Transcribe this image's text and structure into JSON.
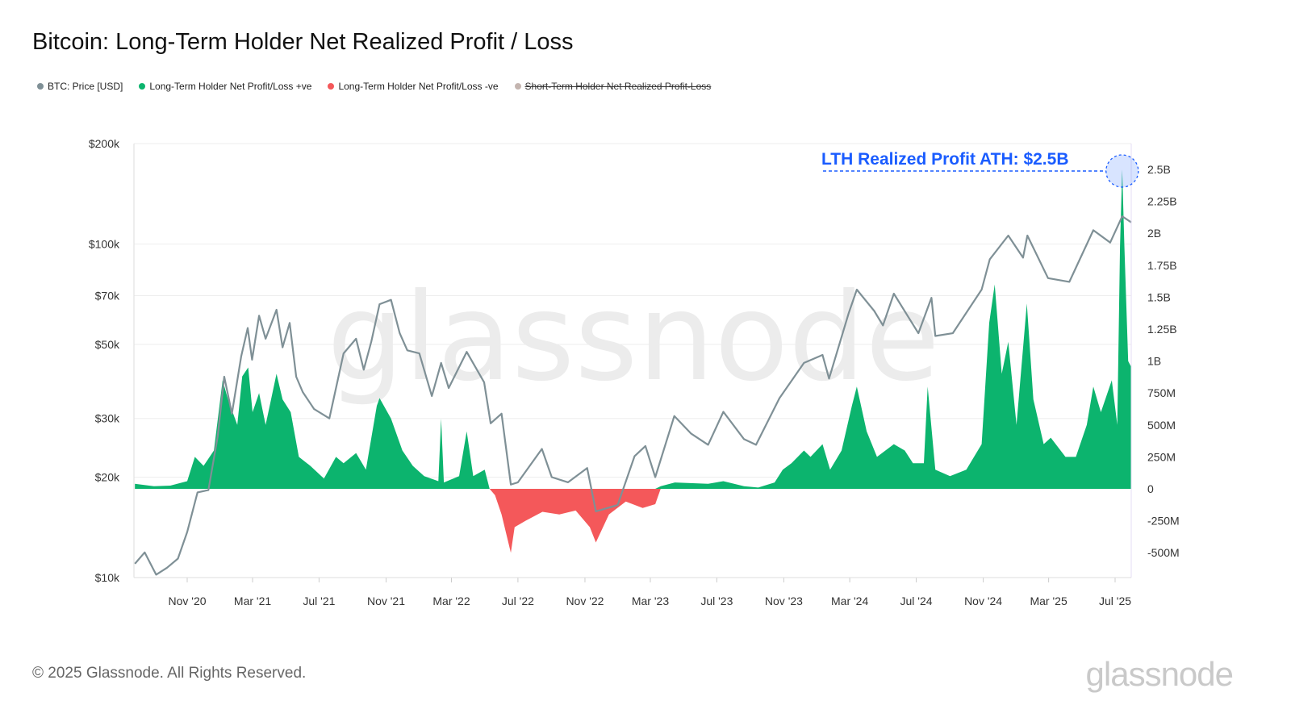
{
  "title": "Bitcoin: Long-Term Holder Net Realized Profit / Loss",
  "legend": [
    {
      "label": "BTC: Price [USD]",
      "color": "#7f9096",
      "enabled": true
    },
    {
      "label": "Long-Term Holder Net Profit/Loss +ve",
      "color": "#0cb46e",
      "enabled": true
    },
    {
      "label": "Long-Term Holder Net Profit/Loss -ve",
      "color": "#f4585a",
      "enabled": true
    },
    {
      "label": "Short-Term Holder Net Realized Profit-Loss",
      "color": "#c4b5b0",
      "enabled": false
    }
  ],
  "footer": "© 2025 Glassnode. All Rights Reserved.",
  "logo_text": "glassnode",
  "watermark": "glassnode",
  "chart_data": {
    "type": "line+area",
    "title": "Bitcoin: Long-Term Holder Net Realized Profit / Loss",
    "x_ticks": [
      "Nov '20",
      "Mar '21",
      "Jul '21",
      "Nov '21",
      "Mar '22",
      "Jul '22",
      "Nov '22",
      "Mar '23",
      "Jul '23",
      "Nov '23",
      "Mar '24",
      "Jul '24",
      "Nov '24",
      "Mar '25",
      "Jul '25"
    ],
    "x_tick_dates": [
      "2020-11-01",
      "2021-03-01",
      "2021-07-01",
      "2021-11-01",
      "2022-03-01",
      "2022-07-01",
      "2022-11-01",
      "2023-03-01",
      "2023-07-01",
      "2023-11-01",
      "2024-03-01",
      "2024-07-01",
      "2024-11-01",
      "2025-03-01",
      "2025-07-01"
    ],
    "x_range": [
      "2020-07-28",
      "2025-08-02"
    ],
    "left_axis": {
      "scale": "log",
      "range": [
        10000,
        200000
      ],
      "ticks": [
        10000,
        20000,
        30000,
        50000,
        70000,
        100000,
        200000
      ],
      "tick_labels": [
        "$10k",
        "$20k",
        "$30k",
        "$50k",
        "$70k",
        "$100k",
        "$200k"
      ]
    },
    "right_axis": {
      "scale": "linear",
      "range": [
        -700000000,
        2700000000
      ],
      "ticks": [
        -500000000,
        -250000000,
        0,
        250000000,
        500000000,
        750000000,
        1000000000,
        1250000000,
        1500000000,
        1750000000,
        2000000000,
        2250000000,
        2500000000
      ],
      "tick_labels": [
        "-500M",
        "-250M",
        "0",
        "250M",
        "500M",
        "750M",
        "1B",
        "1.25B",
        "1.5B",
        "1.75B",
        "2B",
        "2.25B",
        "2.5B"
      ]
    },
    "grid": true,
    "annotation": {
      "text": "LTH Realized Profit ATH: $2.5B",
      "date": "2025-07-14",
      "value": 2500000000,
      "color": "#1a5cff"
    },
    "series": [
      {
        "name": "BTC: Price [USD]",
        "axis": "left",
        "color": "#7f9096",
        "points": [
          [
            "2020-07-28",
            11000
          ],
          [
            "2020-08-15",
            11900
          ],
          [
            "2020-09-05",
            10200
          ],
          [
            "2020-09-25",
            10700
          ],
          [
            "2020-10-15",
            11400
          ],
          [
            "2020-11-01",
            13700
          ],
          [
            "2020-11-20",
            18000
          ],
          [
            "2020-12-10",
            18300
          ],
          [
            "2020-12-27",
            26500
          ],
          [
            "2021-01-08",
            40000
          ],
          [
            "2021-01-22",
            31000
          ],
          [
            "2021-02-08",
            46000
          ],
          [
            "2021-02-20",
            56000
          ],
          [
            "2021-02-28",
            45000
          ],
          [
            "2021-03-13",
            61000
          ],
          [
            "2021-03-25",
            52000
          ],
          [
            "2021-04-14",
            63500
          ],
          [
            "2021-04-25",
            49000
          ],
          [
            "2021-05-08",
            58000
          ],
          [
            "2021-05-20",
            40000
          ],
          [
            "2021-06-01",
            36000
          ],
          [
            "2021-06-22",
            32000
          ],
          [
            "2021-07-20",
            30000
          ],
          [
            "2021-08-15",
            47000
          ],
          [
            "2021-09-07",
            52000
          ],
          [
            "2021-09-21",
            42000
          ],
          [
            "2021-10-05",
            51000
          ],
          [
            "2021-10-20",
            66000
          ],
          [
            "2021-11-10",
            68000
          ],
          [
            "2021-11-26",
            54000
          ],
          [
            "2021-12-10",
            48000
          ],
          [
            "2022-01-01",
            47000
          ],
          [
            "2022-01-24",
            35000
          ],
          [
            "2022-02-10",
            44000
          ],
          [
            "2022-02-24",
            37000
          ],
          [
            "2022-03-29",
            47500
          ],
          [
            "2022-04-30",
            38500
          ],
          [
            "2022-05-12",
            29000
          ],
          [
            "2022-06-01",
            31000
          ],
          [
            "2022-06-18",
            19000
          ],
          [
            "2022-07-01",
            19300
          ],
          [
            "2022-08-14",
            24300
          ],
          [
            "2022-09-01",
            20000
          ],
          [
            "2022-10-01",
            19300
          ],
          [
            "2022-11-05",
            21300
          ],
          [
            "2022-11-21",
            15800
          ],
          [
            "2022-12-31",
            16500
          ],
          [
            "2023-01-31",
            23100
          ],
          [
            "2023-02-20",
            24800
          ],
          [
            "2023-03-10",
            20000
          ],
          [
            "2023-04-14",
            30500
          ],
          [
            "2023-05-15",
            27000
          ],
          [
            "2023-06-15",
            25000
          ],
          [
            "2023-07-13",
            31400
          ],
          [
            "2023-08-20",
            26000
          ],
          [
            "2023-09-11",
            25000
          ],
          [
            "2023-10-24",
            34500
          ],
          [
            "2023-12-08",
            44000
          ],
          [
            "2024-01-11",
            46500
          ],
          [
            "2024-01-23",
            39500
          ],
          [
            "2024-02-28",
            62000
          ],
          [
            "2024-03-14",
            73000
          ],
          [
            "2024-04-15",
            63000
          ],
          [
            "2024-05-01",
            57000
          ],
          [
            "2024-05-21",
            71000
          ],
          [
            "2024-07-05",
            54000
          ],
          [
            "2024-07-29",
            69000
          ],
          [
            "2024-08-05",
            53000
          ],
          [
            "2024-09-06",
            54000
          ],
          [
            "2024-10-29",
            73000
          ],
          [
            "2024-11-13",
            90000
          ],
          [
            "2024-12-17",
            106000
          ],
          [
            "2025-01-13",
            91000
          ],
          [
            "2025-01-21",
            106000
          ],
          [
            "2025-02-28",
            79000
          ],
          [
            "2025-04-08",
            77000
          ],
          [
            "2025-05-22",
            110000
          ],
          [
            "2025-06-22",
            101000
          ],
          [
            "2025-07-14",
            121000
          ],
          [
            "2025-07-31",
            116000
          ]
        ]
      },
      {
        "name": "Long-Term Holder Net Profit/Loss",
        "axis": "right",
        "positive_color": "#0cb46e",
        "negative_color": "#f4585a",
        "points": [
          [
            "2020-07-28",
            40000000
          ],
          [
            "2020-09-01",
            20000000
          ],
          [
            "2020-10-01",
            25000000
          ],
          [
            "2020-11-01",
            60000000
          ],
          [
            "2020-11-15",
            250000000
          ],
          [
            "2020-12-01",
            180000000
          ],
          [
            "2020-12-20",
            300000000
          ],
          [
            "2021-01-05",
            850000000
          ],
          [
            "2021-01-15",
            700000000
          ],
          [
            "2021-02-01",
            500000000
          ],
          [
            "2021-02-10",
            880000000
          ],
          [
            "2021-02-21",
            950000000
          ],
          [
            "2021-03-01",
            600000000
          ],
          [
            "2021-03-13",
            750000000
          ],
          [
            "2021-03-25",
            500000000
          ],
          [
            "2021-04-14",
            900000000
          ],
          [
            "2021-04-25",
            700000000
          ],
          [
            "2021-05-10",
            600000000
          ],
          [
            "2021-05-25",
            250000000
          ],
          [
            "2021-06-15",
            180000000
          ],
          [
            "2021-07-10",
            80000000
          ],
          [
            "2021-08-01",
            250000000
          ],
          [
            "2021-08-15",
            200000000
          ],
          [
            "2021-09-07",
            280000000
          ],
          [
            "2021-09-25",
            150000000
          ],
          [
            "2021-10-15",
            650000000
          ],
          [
            "2021-10-20",
            710000000
          ],
          [
            "2021-11-10",
            550000000
          ],
          [
            "2021-12-01",
            300000000
          ],
          [
            "2021-12-20",
            180000000
          ],
          [
            "2022-01-10",
            100000000
          ],
          [
            "2022-02-05",
            60000000
          ],
          [
            "2022-02-10",
            550000000
          ],
          [
            "2022-02-15",
            50000000
          ],
          [
            "2022-03-15",
            100000000
          ],
          [
            "2022-03-29",
            450000000
          ],
          [
            "2022-04-10",
            100000000
          ],
          [
            "2022-05-01",
            150000000
          ],
          [
            "2022-05-10",
            0
          ],
          [
            "2022-05-20",
            -50000000
          ],
          [
            "2022-06-01",
            -200000000
          ],
          [
            "2022-06-18",
            -500000000
          ],
          [
            "2022-06-25",
            -300000000
          ],
          [
            "2022-07-15",
            -250000000
          ],
          [
            "2022-08-15",
            -180000000
          ],
          [
            "2022-09-15",
            -200000000
          ],
          [
            "2022-10-15",
            -170000000
          ],
          [
            "2022-11-10",
            -300000000
          ],
          [
            "2022-11-21",
            -420000000
          ],
          [
            "2022-12-15",
            -200000000
          ],
          [
            "2023-01-15",
            -100000000
          ],
          [
            "2023-02-15",
            -150000000
          ],
          [
            "2023-03-10",
            -120000000
          ],
          [
            "2023-03-20",
            20000000
          ],
          [
            "2023-04-15",
            50000000
          ],
          [
            "2023-06-15",
            40000000
          ],
          [
            "2023-07-13",
            60000000
          ],
          [
            "2023-08-20",
            20000000
          ],
          [
            "2023-09-15",
            10000000
          ],
          [
            "2023-10-15",
            50000000
          ],
          [
            "2023-10-30",
            150000000
          ],
          [
            "2023-11-15",
            200000000
          ],
          [
            "2023-12-08",
            300000000
          ],
          [
            "2023-12-20",
            250000000
          ],
          [
            "2024-01-11",
            350000000
          ],
          [
            "2024-01-25",
            150000000
          ],
          [
            "2024-02-15",
            300000000
          ],
          [
            "2024-03-05",
            650000000
          ],
          [
            "2024-03-14",
            800000000
          ],
          [
            "2024-04-01",
            450000000
          ],
          [
            "2024-04-20",
            250000000
          ],
          [
            "2024-05-21",
            350000000
          ],
          [
            "2024-06-10",
            300000000
          ],
          [
            "2024-06-25",
            200000000
          ],
          [
            "2024-07-15",
            200000000
          ],
          [
            "2024-07-22",
            800000000
          ],
          [
            "2024-08-05",
            150000000
          ],
          [
            "2024-09-01",
            100000000
          ],
          [
            "2024-10-01",
            150000000
          ],
          [
            "2024-10-29",
            350000000
          ],
          [
            "2024-11-12",
            1300000000
          ],
          [
            "2024-11-22",
            1600000000
          ],
          [
            "2024-12-05",
            900000000
          ],
          [
            "2024-12-17",
            1150000000
          ],
          [
            "2025-01-01",
            500000000
          ],
          [
            "2025-01-20",
            1450000000
          ],
          [
            "2025-02-01",
            700000000
          ],
          [
            "2025-02-20",
            350000000
          ],
          [
            "2025-03-05",
            400000000
          ],
          [
            "2025-04-01",
            250000000
          ],
          [
            "2025-04-20",
            250000000
          ],
          [
            "2025-05-10",
            500000000
          ],
          [
            "2025-05-22",
            800000000
          ],
          [
            "2025-06-05",
            600000000
          ],
          [
            "2025-06-25",
            850000000
          ],
          [
            "2025-07-05",
            500000000
          ],
          [
            "2025-07-10",
            1900000000
          ],
          [
            "2025-07-14",
            2500000000
          ],
          [
            "2025-07-18",
            1900000000
          ],
          [
            "2025-07-25",
            1000000000
          ],
          [
            "2025-07-31",
            950000000
          ]
        ]
      }
    ]
  }
}
